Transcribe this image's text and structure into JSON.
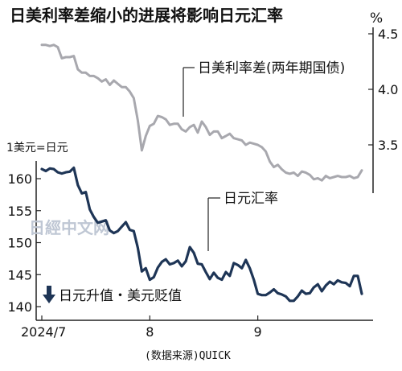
{
  "chart_data": [
    {
      "type": "line",
      "title": "日美利率差缩小的进展将影响日元汇率",
      "series": [
        {
          "name": "日美利率差(两年期国债)",
          "color": "#a8a8ae",
          "ylim": [
            3.1,
            4.55
          ],
          "y_ticks": [
            "4.5",
            "4.0",
            "3.5"
          ],
          "y_unit": "%",
          "x": [
            0,
            1,
            2,
            3,
            4,
            5,
            6,
            7,
            8,
            9,
            10,
            11,
            12,
            13,
            14,
            15,
            16,
            17,
            18,
            19,
            20,
            21,
            22,
            23,
            24,
            25,
            26,
            27,
            28,
            29,
            30,
            31,
            32,
            33,
            34,
            35,
            36,
            37,
            38,
            39,
            40,
            41,
            42,
            43,
            44,
            45,
            46,
            47,
            48,
            49,
            50,
            51,
            52,
            53,
            54,
            55,
            56,
            57,
            58,
            59,
            60,
            61,
            62,
            63,
            64,
            65,
            66,
            67,
            68,
            69,
            70,
            71,
            72,
            73,
            74,
            75,
            76,
            77,
            78,
            79,
            80
          ],
          "values": [
            4.4,
            4.4,
            4.39,
            4.4,
            4.38,
            4.28,
            4.29,
            4.29,
            4.3,
            4.18,
            4.15,
            4.15,
            4.12,
            4.12,
            4.1,
            4.07,
            4.09,
            4.04,
            4.08,
            4.05,
            4.02,
            4.02,
            3.98,
            3.92,
            3.72,
            3.45,
            3.58,
            3.67,
            3.69,
            3.76,
            3.75,
            3.73,
            3.68,
            3.69,
            3.69,
            3.64,
            3.62,
            3.66,
            3.68,
            3.61,
            3.71,
            3.66,
            3.59,
            3.62,
            3.62,
            3.56,
            3.58,
            3.6,
            3.56,
            3.55,
            3.54,
            3.5,
            3.52,
            3.51,
            3.5,
            3.48,
            3.44,
            3.35,
            3.3,
            3.32,
            3.28,
            3.25,
            3.24,
            3.25,
            3.22,
            3.26,
            3.25,
            3.23,
            3.19,
            3.2,
            3.18,
            3.22,
            3.2,
            3.21,
            3.22,
            3.21,
            3.21,
            3.22,
            3.2,
            3.21,
            3.27
          ]
        },
        {
          "name": "日元汇率",
          "color": "#1e3556",
          "ylim": [
            137.5,
            163.5
          ],
          "y_ticks": [
            "160",
            "155",
            "150",
            "145",
            "140"
          ],
          "y_unit": "1美元=日元",
          "x": [
            0,
            1,
            2,
            3,
            4,
            5,
            6,
            7,
            8,
            9,
            10,
            11,
            12,
            13,
            14,
            15,
            16,
            17,
            18,
            19,
            20,
            21,
            22,
            23,
            24,
            25,
            26,
            27,
            28,
            29,
            30,
            31,
            32,
            33,
            34,
            35,
            36,
            37,
            38,
            39,
            40,
            41,
            42,
            43,
            44,
            45,
            46,
            47,
            48,
            49,
            50,
            51,
            52,
            53,
            54,
            55,
            56,
            57,
            58,
            59,
            60,
            61,
            62,
            63,
            64,
            65,
            66,
            67,
            68,
            69,
            70,
            71,
            72,
            73,
            74,
            75,
            76,
            77,
            78,
            79,
            80
          ],
          "values": [
            161.5,
            161.2,
            161.6,
            161.5,
            161.0,
            160.8,
            161.0,
            161.1,
            161.7,
            159.0,
            157.7,
            157.9,
            155.2,
            154.0,
            153.1,
            153.3,
            153.5,
            151.9,
            151.5,
            151.8,
            152.5,
            153.2,
            152.0,
            151.8,
            149.2,
            145.5,
            146.0,
            144.2,
            144.6,
            146.1,
            147.0,
            147.4,
            146.6,
            146.8,
            147.2,
            146.3,
            147.1,
            149.3,
            148.4,
            146.7,
            146.6,
            145.4,
            144.3,
            145.3,
            144.5,
            144.2,
            145.4,
            144.8,
            146.8,
            146.5,
            146.0,
            147.3,
            146.0,
            144.2,
            142.0,
            141.8,
            141.8,
            142.2,
            142.7,
            142.1,
            141.9,
            141.6,
            140.9,
            140.9,
            141.6,
            142.5,
            142.0,
            142.1,
            143.0,
            143.5,
            142.4,
            143.3,
            143.9,
            143.5,
            144.1,
            143.8,
            143.7,
            143.2,
            144.8,
            144.8,
            142.0
          ]
        }
      ],
      "x_ticks": [
        {
          "label": "2024/7",
          "at": 0
        },
        {
          "label": "8",
          "at": 27
        },
        {
          "label": "9",
          "at": 54
        }
      ],
      "annotations": {
        "direction_note": "日元升值・美元贬值",
        "source": "(数据来源)QUICK"
      },
      "watermark": "日經中文网"
    }
  ]
}
